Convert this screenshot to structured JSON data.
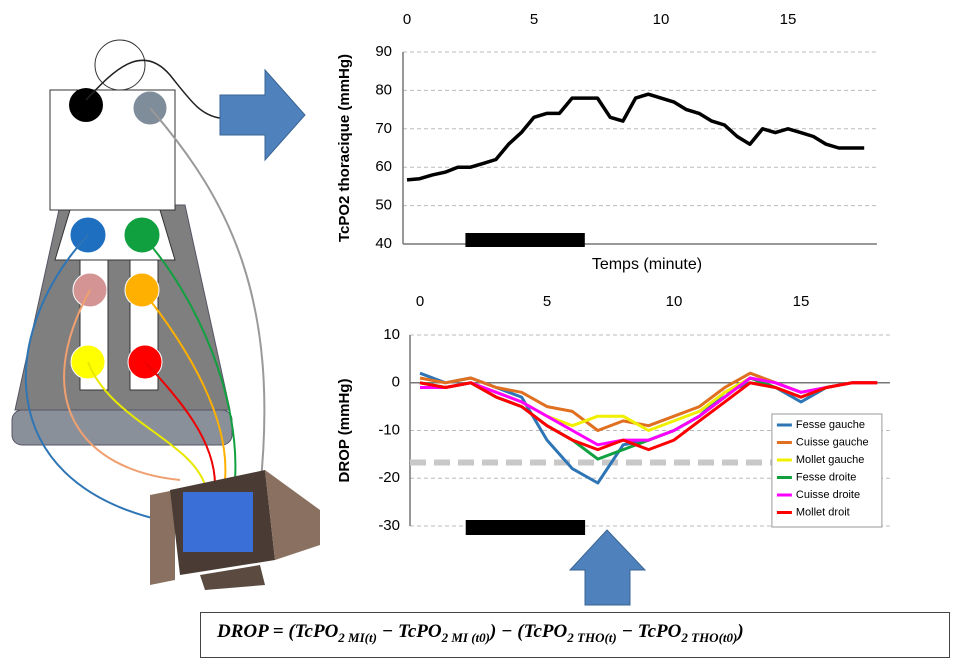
{
  "chart_data": [
    {
      "type": "line",
      "ylabel": "TcPO2 thoracique (mmHg)",
      "xlabel": "Temps (minute)",
      "x": [
        0,
        0.5,
        1,
        1.5,
        2,
        2.5,
        3,
        3.5,
        4,
        4.5,
        5,
        5.5,
        6,
        6.5,
        7,
        7.5,
        8,
        8.5,
        9,
        9.5,
        10,
        10.5,
        11,
        11.5,
        12,
        12.5,
        13,
        13.5,
        14,
        14.5,
        15,
        15.5,
        16,
        16.5,
        17,
        17.5,
        18
      ],
      "values": [
        56.7,
        57,
        58,
        58.7,
        60,
        60,
        61,
        62,
        66,
        69,
        73,
        74,
        74,
        78,
        78,
        78,
        73,
        72,
        78,
        79,
        78,
        77,
        75,
        74,
        72,
        71,
        68,
        66,
        70,
        69,
        70,
        69,
        68,
        66,
        65,
        65,
        65
      ],
      "color": "#000000",
      "xlim": [
        0,
        18.5
      ],
      "xticks": [
        0,
        5,
        10,
        15
      ],
      "ylim": [
        40,
        90
      ],
      "yticks": [
        40,
        50,
        60,
        70,
        80,
        90
      ],
      "grid": true,
      "exercise_bar": [
        2.3,
        7.0
      ]
    },
    {
      "type": "line",
      "ylabel": "DROP (mmHg)",
      "x": [
        0,
        1,
        2,
        3,
        4,
        5,
        6,
        7,
        8,
        9,
        10,
        11,
        12,
        13,
        14,
        15,
        16,
        17,
        18
      ],
      "series": [
        {
          "name": "Fesse gauche",
          "color": "#2e75b6",
          "values": [
            2,
            0,
            1,
            -1,
            -3,
            -12,
            -18,
            -21,
            -13,
            -12,
            -10,
            -7,
            -2,
            0,
            -1,
            -4,
            -1,
            0,
            0
          ]
        },
        {
          "name": "Cuisse gauche",
          "color": "#e07020",
          "values": [
            1,
            0,
            1,
            -1,
            -2,
            -5,
            -6,
            -10,
            -8,
            -9,
            -7,
            -5,
            -1,
            2,
            0,
            -2,
            -1,
            0,
            0
          ]
        },
        {
          "name": "Mollet gauche",
          "color": "#f0f000",
          "values": [
            0,
            -1,
            0,
            -2,
            -4,
            -7,
            -9,
            -7,
            -7,
            -10,
            -8,
            -6,
            -2,
            1,
            -1,
            -3,
            -1,
            0,
            0
          ]
        },
        {
          "name": "Fesse droite",
          "color": "#10a040",
          "values": [
            0,
            -1,
            0,
            -3,
            -5,
            -9,
            -12,
            -16,
            -14,
            -12,
            -10,
            -7,
            -3,
            1,
            -1,
            -3,
            -1,
            0,
            0
          ]
        },
        {
          "name": "Cuisse droite",
          "color": "#ff00ff",
          "values": [
            -1,
            -1,
            0,
            -2,
            -4,
            -7,
            -10,
            -13,
            -12,
            -12,
            -10,
            -7,
            -3,
            1,
            0,
            -2,
            -1,
            0,
            0
          ]
        },
        {
          "name": "Mollet droit",
          "color": "#ff0000",
          "values": [
            0,
            -1,
            0,
            -3,
            -5,
            -9,
            -12,
            -14,
            -12,
            -14,
            -12,
            -8,
            -4,
            0,
            -1,
            -3,
            -1,
            0,
            0
          ]
        }
      ],
      "xlim": [
        0,
        18.5
      ],
      "xticks": [
        0,
        5,
        10,
        15
      ],
      "ylim": [
        -30,
        10
      ],
      "yticks": [
        {
          "value": -30,
          "label": "-30"
        },
        {
          "value": -20,
          "label": "-20"
        },
        {
          "value": -10,
          "label": "-10"
        },
        0,
        10
      ],
      "grid": true,
      "legend": "lower right",
      "threshold": -16.7,
      "exercise_bar": [
        1.8,
        6.5
      ]
    }
  ],
  "formula": {
    "parts": [
      "DROP = (TcPO",
      "2 MI(t)",
      " − TcPO",
      "2 MI (t0)",
      ") − (TcPO",
      "2 THO(t)",
      " − TcPO",
      "2 THO(t0)",
      ")"
    ]
  }
}
